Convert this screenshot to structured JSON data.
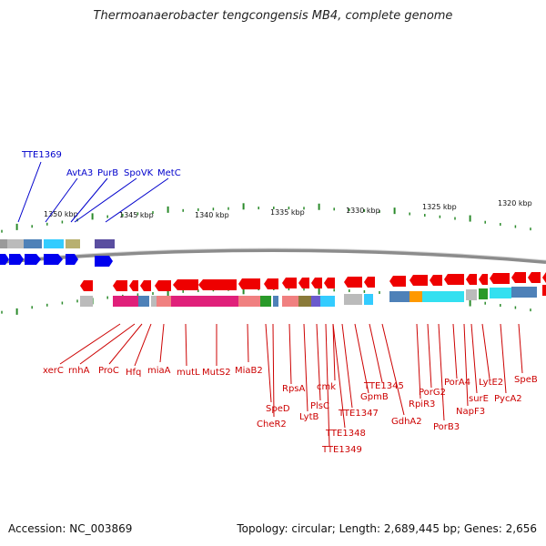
{
  "title": "Thermoanaerobacter tengcongensis MB4, complete genome",
  "footer": {
    "accession": "Accession: NC_003869",
    "summary": "Topology: circular; Length: 2,689,445 bp; Genes: 2,656"
  },
  "kbp_labels": [
    "1350 kbp",
    "1345 kbp",
    "1340 kbp",
    "1335 kbp",
    "1330 kbp",
    "1325 kbp",
    "1320 kbp"
  ],
  "upper_gene_labels": [
    "TTE1369",
    "AvtA3",
    "PurB",
    "SpoVK",
    "MetC"
  ],
  "lower_gene_labels": [
    "xerC",
    "rnhA",
    "ProC",
    "Hfq",
    "miaA",
    "mutL",
    "MutS2",
    "MiaB2",
    "SpeD",
    "CheR2",
    "RpsA",
    "LytB",
    "PlsC",
    "TTE1349",
    "cmk",
    "TTE1348",
    "TTE1347",
    "GpmB",
    "TTE1345",
    "GdhA2",
    "RpiR3",
    "PorG2",
    "PorB3",
    "PorA4",
    "NapF3",
    "surE",
    "LytE2",
    "PycA2",
    "SpeB"
  ],
  "colors": {
    "forward_gene": "#0000ee",
    "reverse_gene": "#ee0000",
    "ticks": "#2a8a2a",
    "backbone": "#888888",
    "upper_label": "#0000cc",
    "lower_label": "#cc0000"
  }
}
